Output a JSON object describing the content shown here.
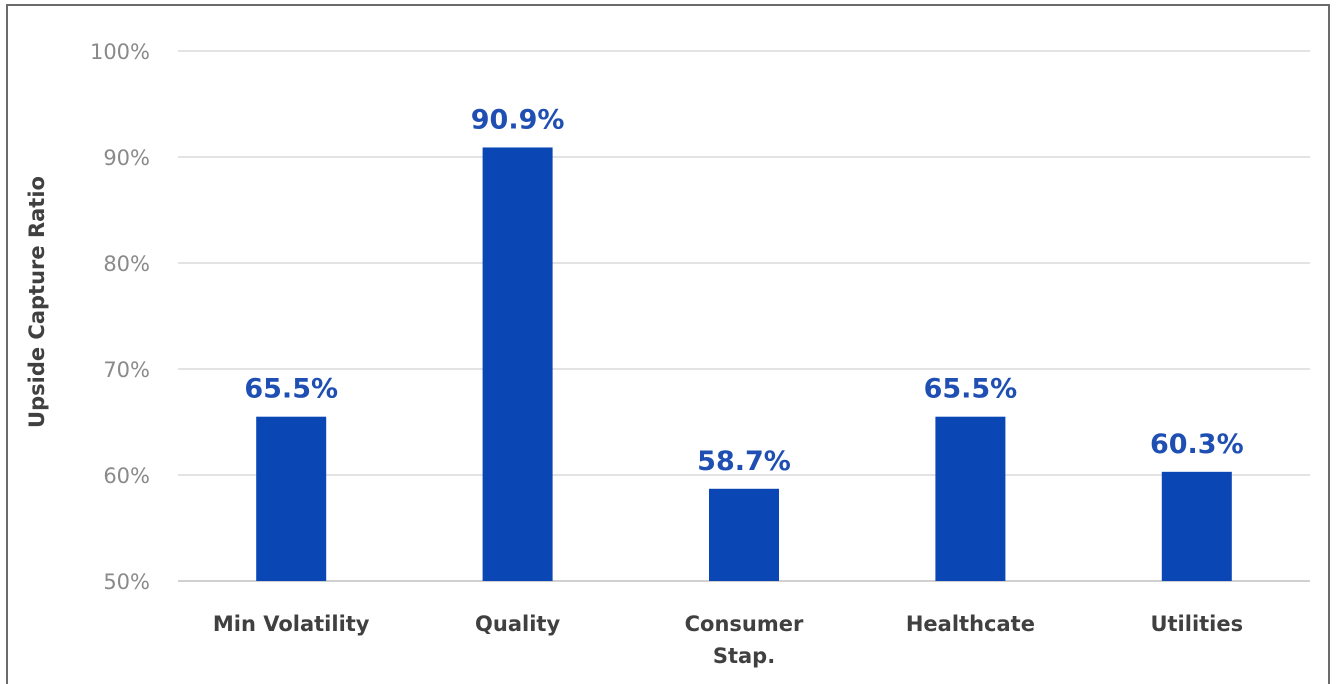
{
  "chart_data": {
    "type": "bar",
    "categories": [
      "Min Volatility",
      "Quality",
      "Consumer Stap.",
      "Healthcate",
      "Utilities"
    ],
    "category_lines": [
      [
        "Min Volatility"
      ],
      [
        "Quality"
      ],
      [
        "Consumer",
        "Stap."
      ],
      [
        "Healthcate"
      ],
      [
        "Utilities"
      ]
    ],
    "values": [
      65.5,
      90.9,
      58.7,
      65.5,
      60.3
    ],
    "data_labels": [
      "65.5%",
      "90.9%",
      "58.7%",
      "65.5%",
      "60.3%"
    ],
    "ylabel": "Upside Capture Ratio",
    "ylim": [
      50,
      100
    ],
    "yticks": [
      50,
      60,
      70,
      80,
      90,
      100
    ],
    "ytick_labels": [
      "50%",
      "60%",
      "70%",
      "80%",
      "90%",
      "100%"
    ],
    "grid": true,
    "bar_color": "#0a47b5",
    "label_color": "#1f4fb3"
  }
}
